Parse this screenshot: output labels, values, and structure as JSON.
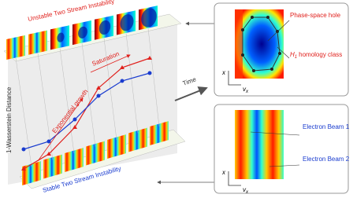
{
  "left": {
    "top_label": "Unstable Two Stream Instability",
    "bottom_label": "Stable Two Stream Instability",
    "y_axis": "1-Wasserstein Distance",
    "time": "Time",
    "saturation": "Saturation",
    "growth": "Exponential growth"
  },
  "right_top": {
    "hole": "Phase-space hole",
    "symbol": "H",
    "subscript": "1",
    "homology": "homology class",
    "y_axis": "x",
    "x_axis": {
      "symbol": "v",
      "subscript": "x"
    }
  },
  "right_bottom": {
    "beam1": "Electron Beam 1",
    "beam2": "Electron Beam 2",
    "y_axis": "x",
    "x_axis": {
      "symbol": "v",
      "subscript": "x"
    }
  }
}
